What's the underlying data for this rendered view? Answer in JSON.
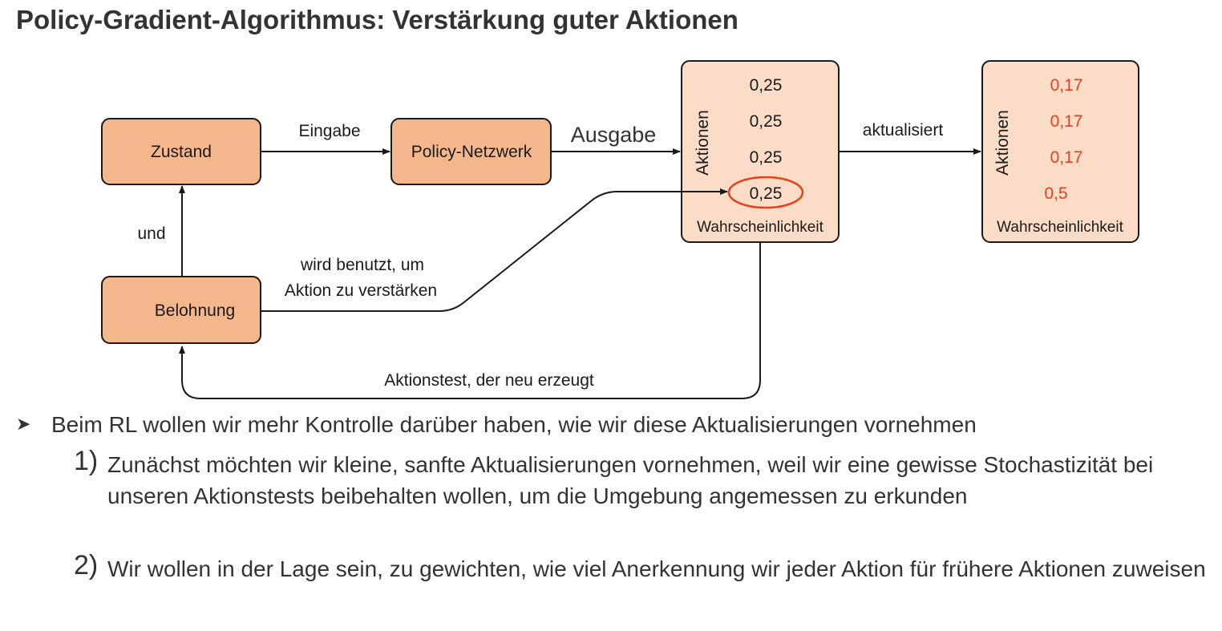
{
  "title": "Policy-Gradient-Algorithmus: Verstärkung guter Aktionen",
  "diagram": {
    "state_box": "Zustand",
    "policy_box": "Policy-Netzwerk",
    "reward_box": "Belohnung",
    "edge_input": "Eingabe",
    "edge_output": "Ausgabe",
    "edge_and": "und",
    "edge_used_line1": "wird benutzt, um",
    "edge_used_line2": "Aktion zu verstärken",
    "edge_updated": "aktualisiert",
    "edge_test": "Aktionstest, der neu erzeugt",
    "actions_label": "Aktionen",
    "probability_label": "Wahrscheinlichkeit",
    "before_values": [
      "0,25",
      "0,25",
      "0,25",
      "0,25"
    ],
    "after_values": [
      "0,17",
      "0,17",
      "0,17",
      "0,5"
    ],
    "highlight_color": "#e8401c",
    "box_color": "#f4b78c",
    "prob_box_color": "#fbdcc7"
  },
  "bullets": {
    "main": "Beim RL wollen wir mehr Kontrolle darüber haben, wie wir diese Aktualisierungen vornehmen",
    "items": [
      {
        "num": "1)",
        "text": "Zunächst möchten wir kleine, sanfte Aktualisierungen vornehmen, weil wir eine gewisse Stochastizität bei unseren Aktionstests beibehalten wollen, um die Umgebung angemessen zu erkunden"
      },
      {
        "num": "2)",
        "text": "Wir wollen in der Lage sein, zu gewichten, wie viel Anerkennung wir jeder Aktion für frühere Aktionen zuweisen"
      }
    ]
  }
}
